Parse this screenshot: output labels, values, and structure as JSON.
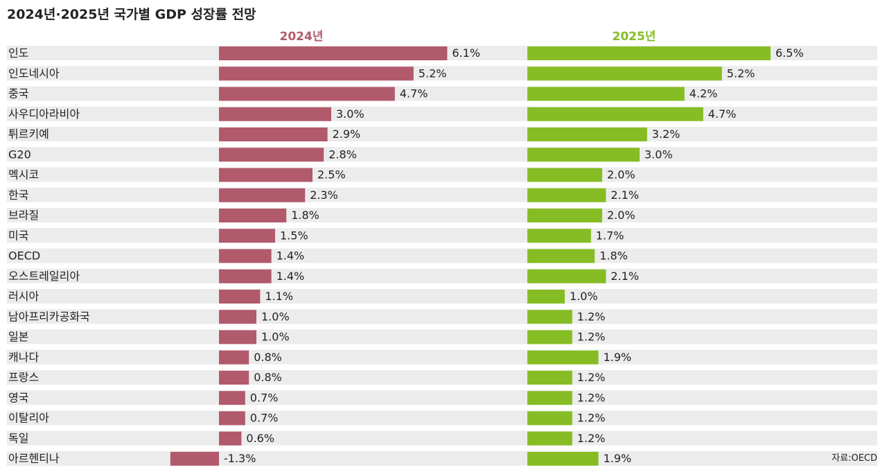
{
  "title": "2024년·2025년 국가별  GDP 성장률 전망",
  "source": "자료:OECD",
  "colors": {
    "series_2024": "#b15a6b",
    "series_2025": "#86bd24",
    "row_band": "#ececec"
  },
  "chart_data": {
    "type": "bar",
    "orientation": "horizontal",
    "title": "2024년·2025년 국가별  GDP 성장률 전망",
    "categories": [
      "인도",
      "인도네시아",
      "중국",
      "사우디아라비아",
      "튀르키예",
      "G20",
      "멕시코",
      "한국",
      "브라질",
      "미국",
      "OECD",
      "오스트레일리아",
      "러시아",
      "남아프리카공화국",
      "일본",
      "캐나다",
      "프랑스",
      "영국",
      "이탈리아",
      "독일",
      "아르헨티나"
    ],
    "series": [
      {
        "name": "2024년",
        "values": [
          6.1,
          5.2,
          4.7,
          3.0,
          2.9,
          2.8,
          2.5,
          2.3,
          1.8,
          1.5,
          1.4,
          1.4,
          1.1,
          1.0,
          1.0,
          0.8,
          0.8,
          0.7,
          0.7,
          0.6,
          -1.3
        ],
        "labels": [
          "6.1%",
          "5.2%",
          "4.7%",
          "3.0%",
          "2.9%",
          "2.8%",
          "2.5%",
          "2.3%",
          "1.8%",
          "1.5%",
          "1.4%",
          "1.4%",
          "1.1%",
          "1.0%",
          "1.0%",
          "0.8%",
          "0.8%",
          "0.7%",
          "0.7%",
          "0.6%",
          "-1.3%"
        ]
      },
      {
        "name": "2025년",
        "values": [
          6.5,
          5.2,
          4.2,
          4.7,
          3.2,
          3.0,
          2.0,
          2.1,
          2.0,
          1.7,
          1.8,
          2.1,
          1.0,
          1.2,
          1.2,
          1.9,
          1.2,
          1.2,
          1.2,
          1.2,
          1.9
        ],
        "labels": [
          "6.5%",
          "5.2%",
          "4.2%",
          "4.7%",
          "3.2%",
          "3.0%",
          "2.0%",
          "2.1%",
          "2.0%",
          "1.7%",
          "1.8%",
          "2.1%",
          "1.0%",
          "1.2%",
          "1.2%",
          "1.9%",
          "1.2%",
          "1.2%",
          "1.2%",
          "1.2%",
          "1.9%"
        ]
      }
    ],
    "unit": "%",
    "grid": false,
    "legend": "none"
  }
}
